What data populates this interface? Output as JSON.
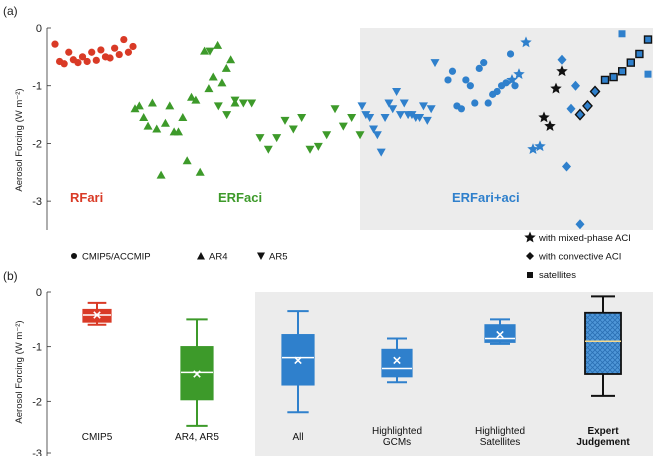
{
  "colors": {
    "rfari": "#d93a26",
    "erfaci": "#3d9a2a",
    "erfariaci": "#2f80cc",
    "shade": "#ececec",
    "dark": "#111111"
  },
  "panel_a": {
    "label": "(a)",
    "ylabel": "Aerosol Forcing (W m⁻²)",
    "ylim": [
      -3.5,
      0
    ],
    "yticks": [
      "0",
      "-1",
      "-2",
      "-3"
    ],
    "region_labels": {
      "rfari": "RFari",
      "erfaci": "ERFaci",
      "erfariaci": "ERFari+aci"
    },
    "legend": {
      "cmip": "CMIP5/ACCMIP",
      "ar4": "AR4",
      "ar5": "AR5",
      "mixed": "with mixed-phase ACI",
      "convective": "with convective ACI",
      "satellites": "satellites"
    }
  },
  "panel_b": {
    "label": "(b)",
    "ylabel": "Aerosol Forcing (W m⁻²)",
    "ylim": [
      -3,
      0
    ],
    "yticks": [
      "0",
      "-1",
      "-2",
      "-3"
    ],
    "categories": [
      "CMIP5",
      "AR4, AR5",
      "All",
      "Highlighted GCMs",
      "Highlighted Satellites",
      "Expert Judgement"
    ]
  },
  "chart_data": [
    {
      "type": "scatter",
      "panel": "(a)",
      "ylabel": "Aerosol Forcing (W m⁻²)",
      "ylim": [
        -3.5,
        0
      ],
      "series": [
        {
          "name": "RFari",
          "marker": "circle",
          "color": "#d93a26",
          "y": [
            -0.28,
            -0.58,
            -0.62,
            -0.42,
            -0.55,
            -0.6,
            -0.5,
            -0.58,
            -0.42,
            -0.56,
            -0.38,
            -0.5,
            -0.52,
            -0.35,
            -0.46,
            -0.2,
            -0.42,
            -0.32
          ]
        },
        {
          "name": "ERFaci AR4",
          "marker": "triangle-up",
          "color": "#3d9a2a",
          "y": [
            -1.4,
            -1.35,
            -1.55,
            -1.7,
            -1.3,
            -1.75,
            -2.55,
            -1.65,
            -1.35,
            -1.8,
            -1.8,
            -1.55,
            -2.3,
            -1.2,
            -1.25,
            -2.5,
            -0.4,
            -1.05,
            -0.85,
            -0.3,
            -0.95,
            -0.7,
            -0.55,
            -1.3
          ]
        },
        {
          "name": "ERFaci AR5",
          "marker": "triangle-down",
          "color": "#3d9a2a",
          "y": [
            -0.4,
            -1.35,
            -1.5,
            -1.25,
            -1.3,
            -1.3,
            -1.9,
            -2.1,
            -1.9,
            -1.6,
            -1.75,
            -1.55,
            -2.1,
            -2.05,
            -1.85,
            -1.4,
            -1.7,
            -1.55,
            -1.85
          ]
        },
        {
          "name": "ERFari+aci AR5",
          "marker": "triangle-down",
          "color": "#2f80cc",
          "y": [
            -1.35,
            -1.5,
            -1.55,
            -1.75,
            -1.85,
            -2.15,
            -1.55,
            -1.3,
            -1.4,
            -1.1,
            -1.5,
            -1.3,
            -1.5,
            -1.5,
            -1.55,
            -1.55,
            -1.35,
            -1.6,
            -1.4,
            -0.6
          ]
        },
        {
          "name": "ERFari+aci CMIP5/ACCMIP",
          "marker": "circle",
          "color": "#2f80cc",
          "y": [
            -0.9,
            -0.75,
            -1.35,
            -1.4,
            -0.9,
            -1.0,
            -1.3,
            -0.7,
            -0.6,
            -1.3,
            -1.15,
            -1.1,
            -1.0,
            -0.95,
            -0.45,
            -1.0
          ]
        },
        {
          "name": "ERFari+aci AR5 star",
          "marker": "star",
          "color": "#2f80cc",
          "y": [
            -0.9,
            -0.8,
            -0.25,
            -2.1,
            -2.05
          ]
        },
        {
          "name": "ERFari+aci convective",
          "marker": "diamond",
          "color": "#2f80cc",
          "y": [
            -0.55,
            -2.4,
            -1.4,
            -1.0,
            -3.4
          ]
        },
        {
          "name": "ERFari+aci satellites",
          "marker": "square",
          "color": "#2f80cc",
          "y": [
            -0.1,
            -0.8
          ]
        },
        {
          "name": "with mixed-phase ACI",
          "marker": "star",
          "color": "#111111",
          "y": [
            -1.55,
            -1.7,
            -1.05,
            -0.75
          ]
        },
        {
          "name": "with convective ACI",
          "marker": "diamond",
          "color": "#2f80cc",
          "y": [
            -1.5,
            -1.35,
            -1.1
          ]
        },
        {
          "name": "satellites",
          "marker": "square",
          "color": "#2f80cc",
          "y": [
            -0.9,
            -0.85,
            -0.75,
            -0.6,
            -0.45,
            -0.2
          ]
        }
      ]
    },
    {
      "type": "box",
      "panel": "(b)",
      "ylabel": "Aerosol Forcing (W m⁻²)",
      "ylim": [
        -3,
        0
      ],
      "categories": [
        "CMIP5",
        "AR4, AR5",
        "All",
        "Highlighted GCMs",
        "Highlighted Satellites",
        "Expert Judgement"
      ],
      "boxes": [
        {
          "category": "CMIP5",
          "color": "#d93a26",
          "min": -0.6,
          "q1": -0.55,
          "median": -0.42,
          "q3": -0.32,
          "max": -0.2,
          "mean": -0.42
        },
        {
          "category": "AR4, AR5",
          "color": "#3d9a2a",
          "min": -2.45,
          "q1": -1.97,
          "median": -1.47,
          "q3": -1.0,
          "max": -0.5,
          "mean": -1.5
        },
        {
          "category": "All",
          "color": "#2f80cc",
          "min": -2.2,
          "q1": -1.7,
          "median": -1.2,
          "q3": -0.78,
          "max": -0.35,
          "mean": -1.25
        },
        {
          "category": "Highlighted GCMs",
          "color": "#2f80cc",
          "min": -1.65,
          "q1": -1.55,
          "median": -1.4,
          "q3": -1.05,
          "max": -0.85,
          "mean": -1.25
        },
        {
          "category": "Highlighted Satellites",
          "color": "#2f80cc",
          "min": -0.95,
          "q1": -0.92,
          "median": -0.85,
          "q3": -0.6,
          "max": -0.5,
          "mean": -0.78
        },
        {
          "category": "Expert Judgement",
          "color": "#2f80cc",
          "hatched": true,
          "min": -1.9,
          "q1": -1.5,
          "median": -0.9,
          "q3": -0.38,
          "max": -0.08
        }
      ]
    }
  ]
}
